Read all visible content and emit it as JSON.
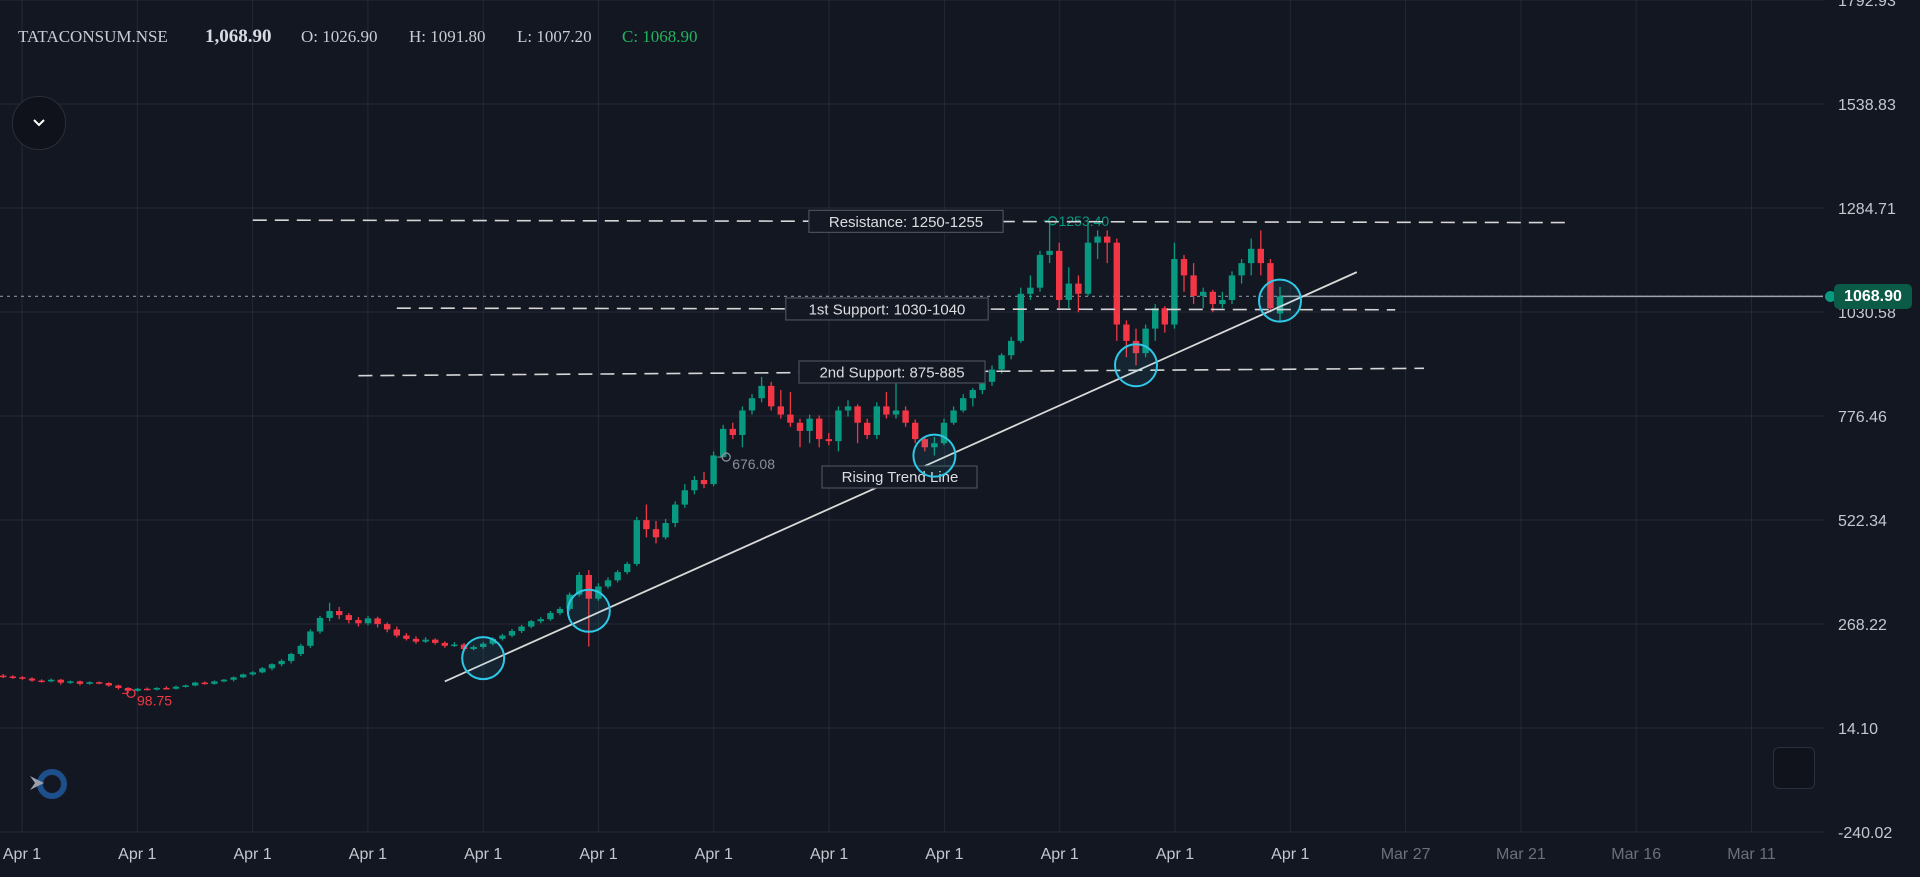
{
  "header": {
    "symbol": "TATACONSUM.NSE",
    "last": "1,068.90",
    "open": "O: 1026.90",
    "high": "H: 1091.80",
    "low": "L: 1007.20",
    "close": "C: 1068.90"
  },
  "price_label": "1068.90",
  "colors": {
    "background": "#131722",
    "up": "#089981",
    "down": "#f23645",
    "grid": "#232836",
    "annotation_circle": "#2ec8e6",
    "line": "#d9d9d9"
  },
  "icons": {
    "dropdown": "chevron-down-icon",
    "logo": "tradingview-logo-icon",
    "corner": "settings-square-icon"
  },
  "chart_data": {
    "type": "candlestick",
    "symbol": "TATACONSUM.NSE",
    "ylim": [
      -240.02,
      1792.93
    ],
    "y_ticks": [
      "1792.93",
      "1538.83",
      "1284.71",
      "1030.58",
      "776.46",
      "522.34",
      "268.22",
      "14.10",
      "-240.02"
    ],
    "x_ticks": [
      "Apr 1",
      "Apr 1",
      "Apr 1",
      "Apr 1",
      "Apr 1",
      "Apr 1",
      "Apr 1",
      "Apr 1",
      "Apr 1",
      "Apr 1",
      "Apr 1",
      "Apr 1",
      "Mar 27",
      "Mar 21",
      "Mar 16",
      "Mar 11"
    ],
    "grid": true,
    "last_price": 1068.9,
    "ohlc": [
      [
        142,
        146,
        136,
        140
      ],
      [
        140,
        143,
        134,
        138
      ],
      [
        138,
        141,
        132,
        135
      ],
      [
        135,
        138,
        127,
        130
      ],
      [
        130,
        133,
        125,
        128
      ],
      [
        128,
        135,
        126,
        132
      ],
      [
        132,
        134,
        120,
        125
      ],
      [
        125,
        130,
        122,
        128
      ],
      [
        128,
        130,
        118,
        122
      ],
      [
        122,
        128,
        120,
        126
      ],
      [
        126,
        128,
        121,
        124
      ],
      [
        124,
        126,
        115,
        118
      ],
      [
        118,
        120,
        108,
        112
      ],
      [
        112,
        114,
        98.75,
        105
      ],
      [
        105,
        112,
        103,
        110
      ],
      [
        110,
        113,
        106,
        108
      ],
      [
        108,
        114,
        106,
        112
      ],
      [
        112,
        116,
        108,
        110
      ],
      [
        110,
        118,
        108,
        115
      ],
      [
        115,
        120,
        113,
        118
      ],
      [
        118,
        127,
        116,
        125
      ],
      [
        125,
        128,
        120,
        122
      ],
      [
        122,
        130,
        120,
        128
      ],
      [
        128,
        134,
        126,
        132
      ],
      [
        132,
        140,
        128,
        138
      ],
      [
        138,
        147,
        136,
        145
      ],
      [
        145,
        153,
        142,
        150
      ],
      [
        150,
        163,
        148,
        160
      ],
      [
        160,
        172,
        155,
        170
      ],
      [
        170,
        182,
        165,
        178
      ],
      [
        178,
        198,
        172,
        195
      ],
      [
        195,
        220,
        190,
        215
      ],
      [
        215,
        255,
        210,
        250
      ],
      [
        250,
        288,
        245,
        283
      ],
      [
        283,
        320,
        275,
        300
      ],
      [
        300,
        310,
        280,
        290
      ],
      [
        290,
        295,
        270,
        278
      ],
      [
        278,
        285,
        262,
        270
      ],
      [
        270,
        288,
        265,
        282
      ],
      [
        282,
        286,
        260,
        268
      ],
      [
        268,
        272,
        248,
        255
      ],
      [
        255,
        262,
        235,
        240
      ],
      [
        240,
        246,
        228,
        232
      ],
      [
        232,
        238,
        220,
        225
      ],
      [
        225,
        236,
        222,
        230
      ],
      [
        230,
        233,
        218,
        222
      ],
      [
        222,
        226,
        210,
        215
      ],
      [
        215,
        224,
        212,
        218
      ],
      [
        218,
        222,
        200,
        207
      ],
      [
        207,
        216,
        204,
        212
      ],
      [
        212,
        224,
        208,
        220
      ],
      [
        220,
        236,
        216,
        232
      ],
      [
        232,
        244,
        228,
        240
      ],
      [
        240,
        256,
        236,
        251
      ],
      [
        251,
        266,
        246,
        262
      ],
      [
        262,
        278,
        258,
        275
      ],
      [
        275,
        285,
        270,
        280
      ],
      [
        280,
        300,
        276,
        295
      ],
      [
        295,
        310,
        290,
        305
      ],
      [
        305,
        345,
        300,
        340
      ],
      [
        340,
        395,
        335,
        388
      ],
      [
        388,
        400,
        213,
        330
      ],
      [
        330,
        368,
        325,
        360
      ],
      [
        360,
        382,
        355,
        375
      ],
      [
        375,
        400,
        370,
        395
      ],
      [
        395,
        420,
        390,
        415
      ],
      [
        415,
        530,
        410,
        522
      ],
      [
        522,
        560,
        480,
        500
      ],
      [
        500,
        520,
        465,
        480
      ],
      [
        480,
        525,
        475,
        515
      ],
      [
        515,
        568,
        505,
        560
      ],
      [
        560,
        610,
        552,
        595
      ],
      [
        595,
        630,
        585,
        620
      ],
      [
        620,
        640,
        600,
        610
      ],
      [
        610,
        690,
        605,
        680
      ],
      [
        676.08,
        755,
        676.08,
        745
      ],
      [
        745,
        760,
        720,
        730
      ],
      [
        730,
        800,
        700,
        790
      ],
      [
        790,
        830,
        780,
        820
      ],
      [
        820,
        872,
        810,
        850
      ],
      [
        850,
        860,
        790,
        800
      ],
      [
        800,
        840,
        770,
        780
      ],
      [
        780,
        835,
        750,
        760
      ],
      [
        760,
        770,
        700,
        740
      ],
      [
        740,
        780,
        710,
        770
      ],
      [
        770,
        778,
        700,
        720
      ],
      [
        720,
        735,
        705,
        715
      ],
      [
        715,
        800,
        690,
        790
      ],
      [
        790,
        815,
        775,
        800
      ],
      [
        800,
        805,
        710,
        760
      ],
      [
        760,
        770,
        720,
        730
      ],
      [
        730,
        810,
        720,
        800
      ],
      [
        800,
        835,
        770,
        780
      ],
      [
        780,
        860,
        770,
        790
      ],
      [
        790,
        800,
        750,
        760
      ],
      [
        760,
        768,
        710,
        720
      ],
      [
        720,
        725,
        690,
        700
      ],
      [
        700,
        725,
        680,
        710
      ],
      [
        710,
        770,
        705,
        760
      ],
      [
        760,
        800,
        755,
        790
      ],
      [
        790,
        830,
        785,
        820
      ],
      [
        820,
        845,
        800,
        840
      ],
      [
        840,
        868,
        830,
        860
      ],
      [
        860,
        900,
        850,
        890
      ],
      [
        890,
        930,
        880,
        925
      ],
      [
        925,
        970,
        915,
        960
      ],
      [
        960,
        1090,
        955,
        1075
      ],
      [
        1075,
        1120,
        1060,
        1090
      ],
      [
        1090,
        1180,
        1080,
        1170
      ],
      [
        1170,
        1253.4,
        1150,
        1180
      ],
      [
        1180,
        1200,
        1040,
        1060
      ],
      [
        1060,
        1140,
        1040,
        1100
      ],
      [
        1100,
        1120,
        1030,
        1075
      ],
      [
        1075,
        1250,
        1070,
        1200
      ],
      [
        1200,
        1230,
        1160,
        1215
      ],
      [
        1215,
        1230,
        1150,
        1200
      ],
      [
        1200,
        1210,
        960,
        1000
      ],
      [
        1000,
        1010,
        920,
        960
      ],
      [
        960,
        990,
        900,
        930
      ],
      [
        930,
        1000,
        920,
        990
      ],
      [
        990,
        1050,
        960,
        1040
      ],
      [
        1040,
        1045,
        980,
        1000
      ],
      [
        1000,
        1200,
        990,
        1160
      ],
      [
        1160,
        1170,
        1080,
        1120
      ],
      [
        1120,
        1150,
        1050,
        1070
      ],
      [
        1070,
        1090,
        1040,
        1080
      ],
      [
        1080,
        1085,
        1030,
        1050
      ],
      [
        1050,
        1080,
        1040,
        1060
      ],
      [
        1060,
        1130,
        1050,
        1120
      ],
      [
        1120,
        1160,
        1100,
        1150
      ],
      [
        1150,
        1210,
        1120,
        1185
      ],
      [
        1185,
        1230,
        1120,
        1150
      ],
      [
        1150,
        1160,
        1030,
        1040
      ],
      [
        1026.9,
        1091.8,
        1007.2,
        1068.9
      ]
    ],
    "markers": [
      {
        "label": "98.75",
        "candle": 13,
        "kind": "low",
        "color": "#f23645"
      },
      {
        "label": "676.08",
        "candle": 75,
        "kind": "low",
        "color": "#8a8f9c"
      },
      {
        "label": "1253.40",
        "candle": 109,
        "kind": "high",
        "color": "#089981"
      }
    ],
    "levels": [
      {
        "label": "Resistance: 1250-1255",
        "price_start": 1255,
        "price_end": 1249,
        "from_candle": 26,
        "to_candle": 163
      },
      {
        "label": "1st Support: 1030-1040",
        "price_start": 1040,
        "price_end": 1036,
        "from_candle": 41,
        "to_candle": 145
      },
      {
        "label": "2nd Support: 875-885",
        "price_start": 875,
        "price_end": 893,
        "from_candle": 37,
        "to_candle": 148
      }
    ],
    "trend_line": {
      "label": "Rising Trend Line",
      "from": [
        46,
        128
      ],
      "to": [
        141,
        1128
      ]
    },
    "touch_points": [
      50,
      61,
      97,
      118,
      133
    ]
  }
}
